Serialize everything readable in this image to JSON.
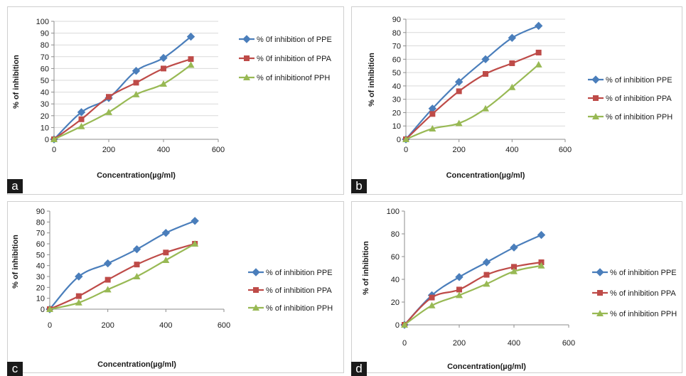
{
  "colors": {
    "series_1": "#4a7ebb",
    "series_2": "#be4b48",
    "series_3": "#98b954"
  },
  "chart_data": [
    {
      "panel_label": "a",
      "type": "line",
      "x": [
        0,
        100,
        200,
        300,
        400,
        500
      ],
      "series": [
        {
          "name": "% 0f inhibition of PPE",
          "values": [
            0,
            23,
            35,
            58,
            69,
            87
          ],
          "marker": "diamond"
        },
        {
          "name": "% 0f inhibition of PPA",
          "values": [
            0,
            17,
            36,
            48,
            60,
            68
          ],
          "marker": "square"
        },
        {
          "name": "% of inhibitionof PPH",
          "values": [
            0,
            11,
            23,
            38,
            47,
            63
          ],
          "marker": "triangle"
        }
      ],
      "xlabel": "Concentration(µg/ml)",
      "ylabel": "% of inhibition",
      "xlim": [
        0,
        600
      ],
      "ylim": [
        0,
        100
      ],
      "x_ticks": [
        0,
        200,
        400,
        600
      ],
      "y_ticks": [
        0,
        10,
        20,
        30,
        40,
        50,
        60,
        70,
        80,
        90,
        100
      ],
      "grid": "horizontal",
      "legend_placement": "right"
    },
    {
      "panel_label": "b",
      "type": "line",
      "x": [
        0,
        100,
        200,
        300,
        400,
        500
      ],
      "series": [
        {
          "name": "% of inhibition PPE",
          "values": [
            0,
            23,
            43,
            60,
            76,
            85
          ],
          "marker": "diamond"
        },
        {
          "name": "% of inhibition PPA",
          "values": [
            0,
            19,
            36,
            49,
            57,
            65
          ],
          "marker": "square"
        },
        {
          "name": "% of inhibition PPH",
          "values": [
            0,
            8,
            12,
            23,
            39,
            56
          ],
          "marker": "triangle"
        }
      ],
      "xlabel": "Concentration(µg/ml)",
      "ylabel": "% of inhibition",
      "xlim": [
        0,
        600
      ],
      "ylim": [
        0,
        90
      ],
      "x_ticks": [
        0,
        200,
        400,
        600
      ],
      "y_ticks": [
        0,
        10,
        20,
        30,
        40,
        50,
        60,
        70,
        80,
        90
      ],
      "grid": "horizontal",
      "legend_placement": "right"
    },
    {
      "panel_label": "c",
      "type": "line",
      "x": [
        0,
        100,
        200,
        300,
        400,
        500
      ],
      "series": [
        {
          "name": "% of inhibition PPE",
          "values": [
            0,
            30,
            42,
            55,
            70,
            81
          ],
          "marker": "diamond"
        },
        {
          "name": "% of inhibition PPA",
          "values": [
            0,
            12,
            27,
            41,
            52,
            60
          ],
          "marker": "square"
        },
        {
          "name": "% of inhibition PPH",
          "values": [
            0,
            6,
            18,
            30,
            45,
            60
          ],
          "marker": "triangle"
        }
      ],
      "xlabel": "Concentration(µg/ml)",
      "ylabel": "% of inhibition",
      "xlim": [
        0,
        600
      ],
      "ylim": [
        0,
        90
      ],
      "x_ticks": [
        0,
        200,
        400,
        600
      ],
      "y_ticks": [
        0,
        10,
        20,
        30,
        40,
        50,
        60,
        70,
        80,
        90
      ],
      "grid": "none",
      "legend_placement": "right"
    },
    {
      "panel_label": "d",
      "type": "line",
      "x": [
        0,
        100,
        200,
        300,
        400,
        500
      ],
      "series": [
        {
          "name": "% of inhibition PPE",
          "values": [
            0,
            26,
            42,
            55,
            68,
            79
          ],
          "marker": "diamond"
        },
        {
          "name": "% of inhibition PPA",
          "values": [
            0,
            24,
            31,
            44,
            51,
            55
          ],
          "marker": "square"
        },
        {
          "name": "% of inhibition PPH",
          "values": [
            0,
            17,
            26,
            36,
            47,
            52
          ],
          "marker": "triangle"
        }
      ],
      "xlabel": "Concentration(µg/ml)",
      "ylabel": "% of inhibition",
      "xlim": [
        0,
        600
      ],
      "ylim": [
        0,
        100
      ],
      "x_ticks": [
        0,
        200,
        400,
        600
      ],
      "y_ticks": [
        0,
        20,
        40,
        60,
        80,
        100
      ],
      "grid": "none",
      "legend_placement": "right"
    }
  ]
}
